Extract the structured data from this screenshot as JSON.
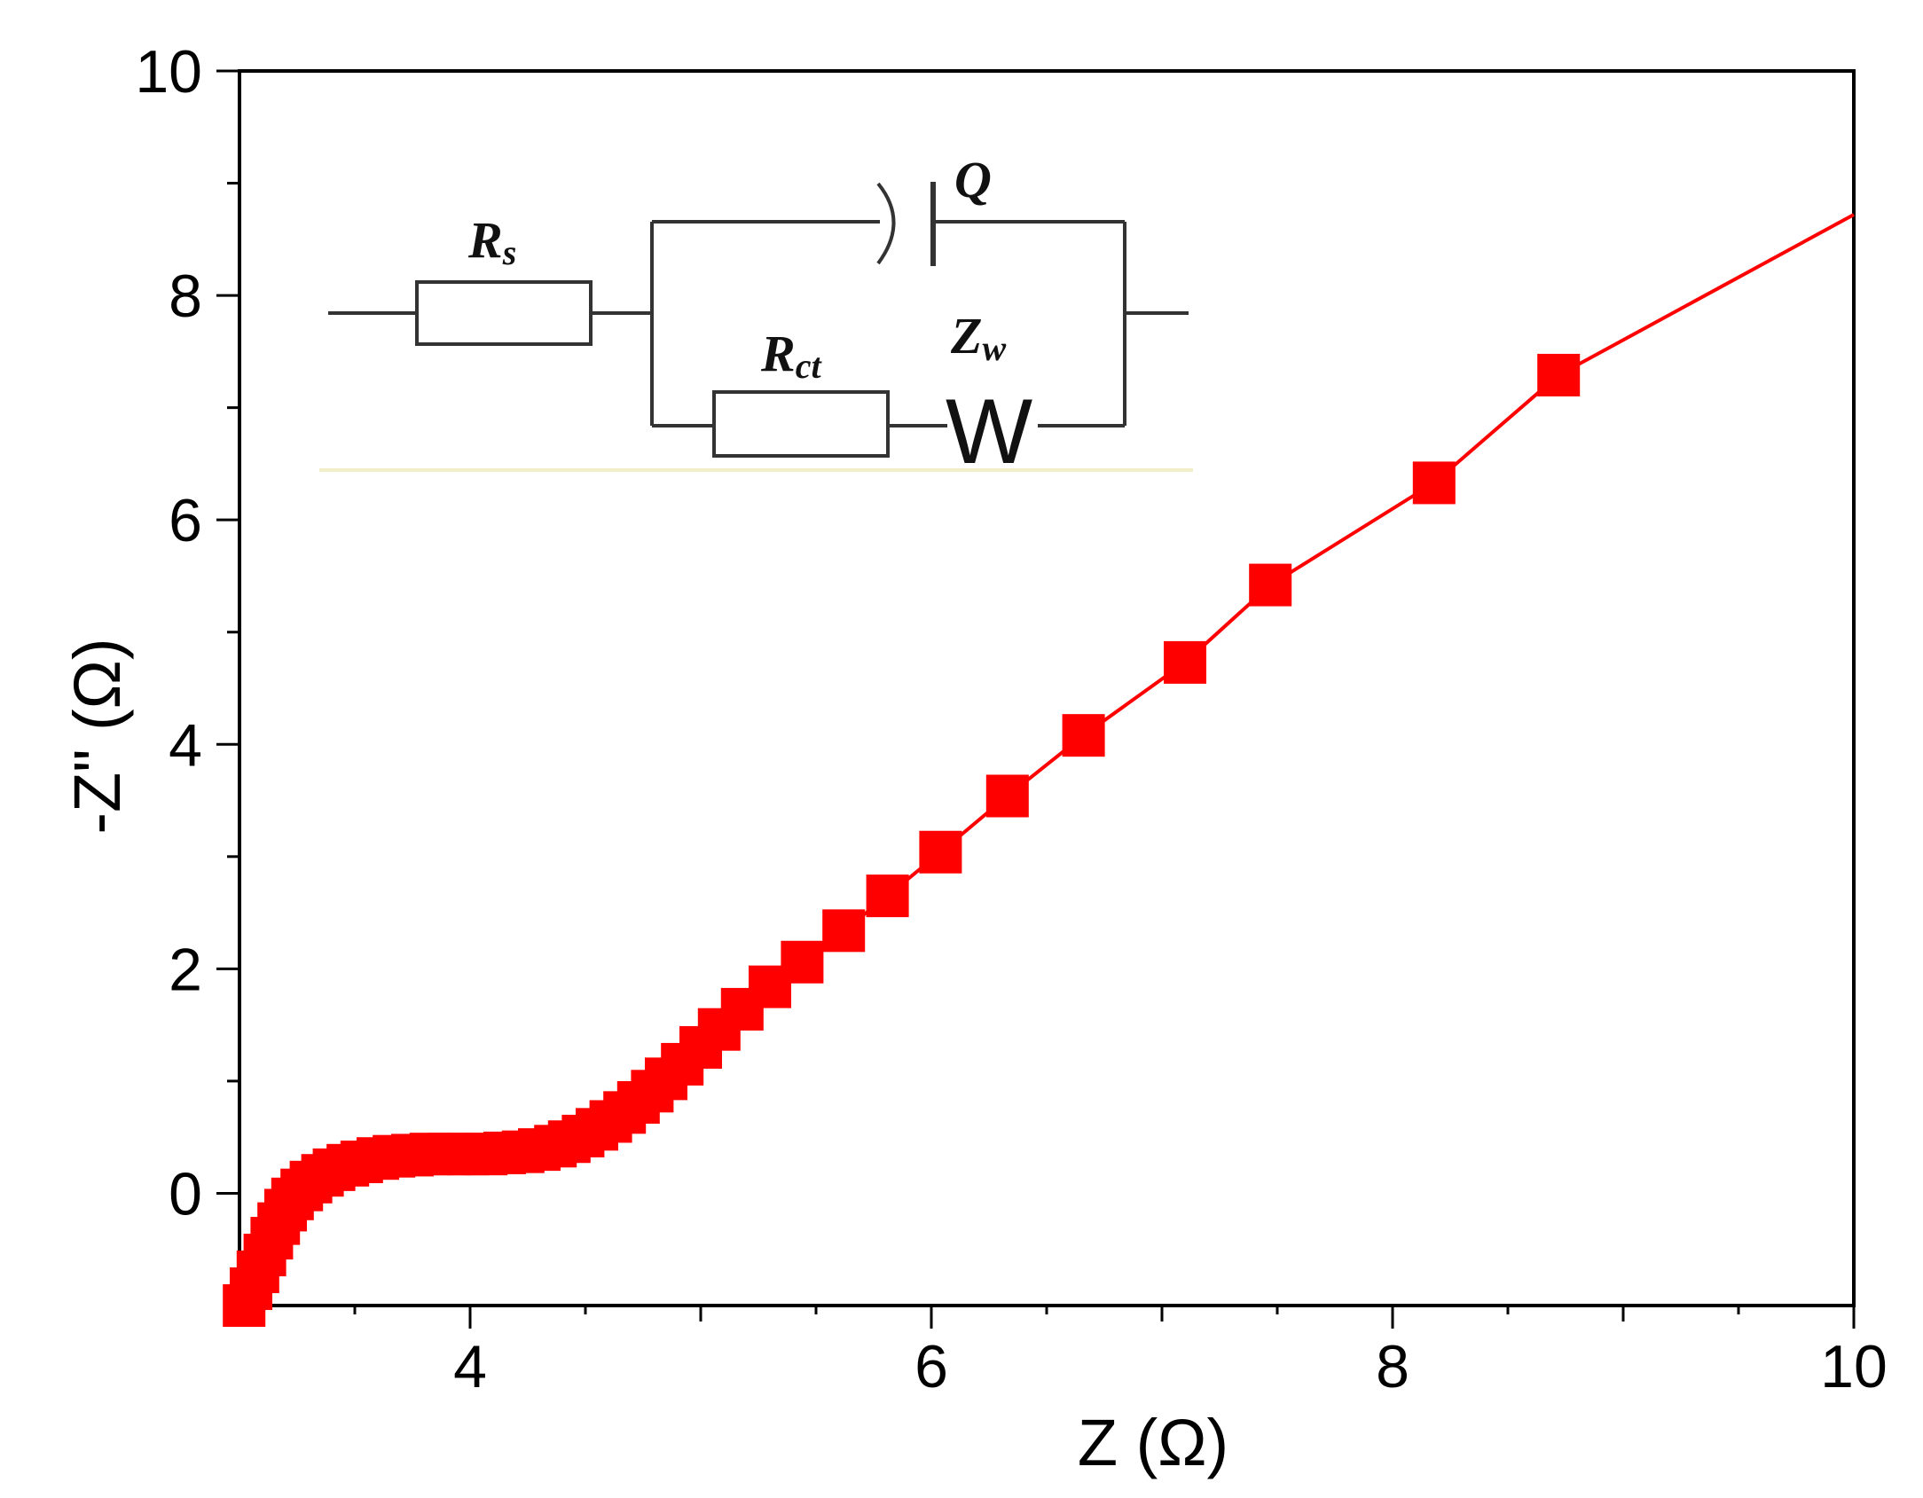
{
  "chart_data": {
    "type": "scatter",
    "xlabel": "Z (Ω)",
    "ylabel": "-Z\" (Ω)",
    "xlim": [
      3,
      10
    ],
    "ylim": [
      -1,
      10
    ],
    "xticks": [
      4,
      6,
      8,
      10
    ],
    "yticks": [
      0,
      2,
      4,
      6,
      8,
      10
    ],
    "grid": false,
    "line_color": "#ff0000",
    "marker_color": "#ff0000",
    "marker": "square",
    "series": [
      {
        "x": [
          3.02,
          3.05,
          3.08,
          3.11,
          3.14,
          3.17,
          3.2,
          3.23,
          3.27,
          3.31,
          3.36,
          3.41,
          3.47,
          3.53,
          3.6,
          3.67,
          3.75,
          3.83,
          3.91,
          3.99,
          4.07,
          4.15,
          4.23,
          4.3,
          4.37,
          4.43,
          4.49,
          4.55,
          4.61,
          4.67,
          4.73,
          4.79,
          4.85,
          4.92,
          5.0,
          5.08,
          5.18,
          5.3,
          5.44,
          5.62,
          5.81,
          6.04,
          6.33,
          6.66,
          7.1,
          7.47,
          8.18,
          8.72
        ],
        "y": [
          -1.0,
          -0.85,
          -0.7,
          -0.55,
          -0.4,
          -0.27,
          -0.15,
          -0.05,
          0.03,
          0.1,
          0.16,
          0.21,
          0.25,
          0.28,
          0.31,
          0.33,
          0.34,
          0.35,
          0.35,
          0.35,
          0.35,
          0.36,
          0.37,
          0.39,
          0.42,
          0.46,
          0.51,
          0.57,
          0.64,
          0.72,
          0.81,
          0.91,
          1.02,
          1.15,
          1.3,
          1.46,
          1.64,
          1.84,
          2.06,
          2.34,
          2.65,
          3.04,
          3.54,
          4.08,
          4.73,
          5.42,
          6.33,
          7.29
        ]
      }
    ],
    "fit_line": {
      "x": [
        3.02,
        3.05,
        3.08,
        3.11,
        3.14,
        3.17,
        3.2,
        3.23,
        3.27,
        3.31,
        3.36,
        3.41,
        3.47,
        3.53,
        3.6,
        3.67,
        3.75,
        3.83,
        3.91,
        3.99,
        4.07,
        4.15,
        4.23,
        4.3,
        4.37,
        4.43,
        4.49,
        4.55,
        4.61,
        4.67,
        4.73,
        4.79,
        4.85,
        4.92,
        5.0,
        5.08,
        5.18,
        5.3,
        5.44,
        5.62,
        5.81,
        6.04,
        6.33,
        6.66,
        7.1,
        7.47,
        8.18,
        8.72,
        10.0
      ],
      "y": [
        -1.0,
        -0.85,
        -0.7,
        -0.55,
        -0.4,
        -0.27,
        -0.15,
        -0.05,
        0.03,
        0.1,
        0.16,
        0.21,
        0.25,
        0.28,
        0.31,
        0.33,
        0.34,
        0.35,
        0.35,
        0.35,
        0.35,
        0.36,
        0.37,
        0.39,
        0.42,
        0.46,
        0.51,
        0.57,
        0.64,
        0.72,
        0.81,
        0.91,
        1.02,
        1.15,
        1.3,
        1.46,
        1.64,
        1.84,
        2.06,
        2.34,
        2.65,
        3.04,
        3.54,
        4.08,
        4.73,
        5.42,
        6.33,
        7.29,
        8.72
      ]
    },
    "inset_circuit": {
      "labels": {
        "rs_main": "R",
        "rs_sub": "s",
        "rct_main": "R",
        "rct_sub": "ct",
        "zw_main": "Z",
        "zw_sub": "w",
        "q": "Q",
        "w": "W"
      }
    }
  }
}
